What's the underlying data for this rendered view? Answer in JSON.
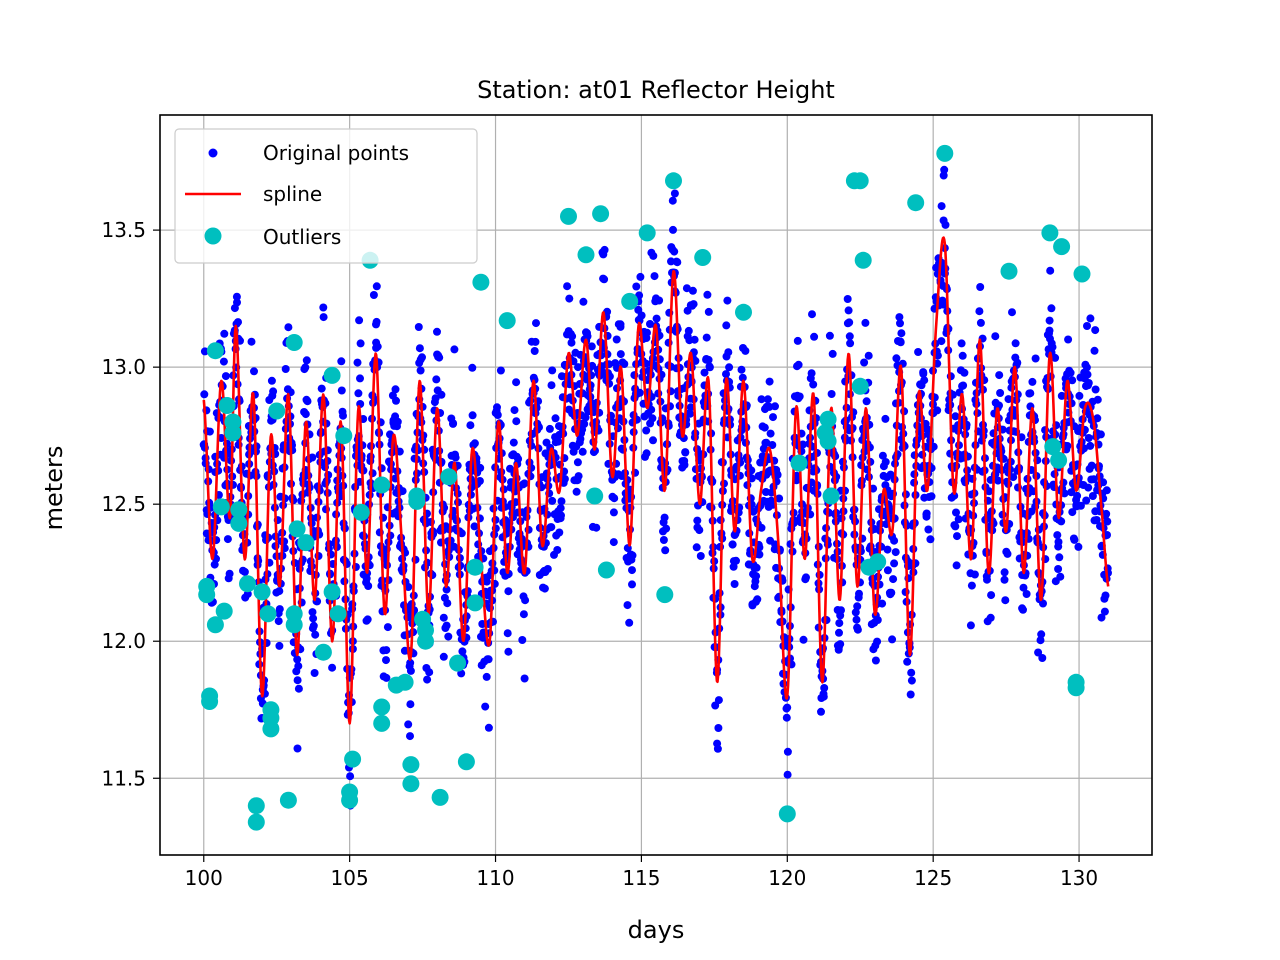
{
  "chart_data": {
    "type": "scatter",
    "title": "Station: at01 Reflector Height",
    "xlabel": "days",
    "ylabel": "meters",
    "xlim": [
      98.5,
      132.5
    ],
    "ylim": [
      11.22,
      13.92
    ],
    "xticks": [
      100,
      105,
      110,
      115,
      120,
      125,
      130
    ],
    "yticks": [
      11.5,
      12.0,
      12.5,
      13.0,
      13.5
    ],
    "xtick_labels": [
      "100",
      "105",
      "110",
      "115",
      "120",
      "125",
      "130"
    ],
    "ytick_labels": [
      "11.5",
      "12.0",
      "12.5",
      "13.0",
      "13.5"
    ],
    "grid": true,
    "legend_position": "upper left",
    "series": [
      {
        "name": "Original points",
        "style": "dots",
        "color": "#0000ff",
        "description": "dense daily oscillating measurements between ~11.4 and ~13.7 m from day 100 to 131"
      },
      {
        "name": "spline",
        "style": "line",
        "color": "#ff0000"
      },
      {
        "name": "Outliers",
        "style": "markers",
        "color": "#00bfbf"
      }
    ],
    "spline": {
      "x": [
        100.0,
        100.3,
        100.6,
        100.9,
        101.1,
        101.4,
        101.7,
        102.0,
        102.3,
        102.6,
        102.9,
        103.2,
        103.5,
        103.8,
        104.1,
        104.4,
        104.7,
        105.0,
        105.3,
        105.6,
        105.9,
        106.2,
        106.5,
        106.8,
        107.1,
        107.4,
        107.7,
        108.0,
        108.3,
        108.6,
        108.9,
        109.2,
        109.5,
        109.8,
        110.1,
        110.4,
        110.7,
        111.0,
        111.3,
        111.6,
        111.9,
        112.2,
        112.5,
        112.8,
        113.1,
        113.4,
        113.7,
        114.0,
        114.3,
        114.6,
        114.9,
        115.2,
        115.5,
        115.8,
        116.1,
        116.4,
        116.7,
        117.0,
        117.3,
        117.6,
        117.9,
        118.2,
        118.5,
        118.8,
        119.1,
        119.4,
        119.7,
        120.0,
        120.3,
        120.6,
        120.9,
        121.2,
        121.5,
        121.8,
        122.1,
        122.4,
        122.7,
        123.0,
        123.3,
        123.6,
        123.9,
        124.2,
        124.5,
        124.8,
        125.1,
        125.4,
        125.7,
        126.0,
        126.3,
        126.6,
        126.9,
        127.2,
        127.5,
        127.8,
        128.1,
        128.4,
        128.7,
        129.0,
        129.3,
        129.6,
        129.9,
        130.2,
        130.5,
        130.8,
        131.0
      ],
      "y": [
        12.88,
        12.3,
        12.95,
        12.45,
        13.15,
        12.3,
        12.9,
        11.8,
        12.75,
        12.2,
        12.9,
        11.95,
        12.8,
        12.15,
        12.9,
        12.0,
        12.8,
        11.7,
        12.85,
        12.25,
        13.05,
        12.1,
        12.75,
        12.35,
        11.95,
        12.95,
        12.1,
        12.85,
        12.2,
        12.65,
        12.0,
        12.7,
        12.3,
        12.0,
        12.8,
        12.25,
        12.65,
        12.25,
        12.95,
        12.35,
        12.7,
        12.55,
        13.05,
        12.75,
        13.1,
        12.7,
        13.2,
        12.6,
        13.0,
        12.35,
        13.15,
        12.85,
        13.15,
        12.55,
        13.35,
        12.75,
        13.05,
        12.5,
        12.95,
        11.85,
        12.95,
        12.4,
        12.95,
        12.3,
        12.55,
        12.7,
        12.35,
        11.8,
        12.85,
        12.3,
        12.9,
        11.85,
        12.85,
        12.15,
        13.05,
        12.2,
        12.85,
        12.1,
        12.55,
        12.4,
        13.0,
        11.95,
        12.9,
        12.55,
        13.15,
        13.45,
        12.55,
        12.9,
        12.3,
        13.1,
        12.25,
        12.85,
        12.4,
        13.0,
        12.25,
        12.85,
        12.15,
        13.05,
        12.45,
        12.95,
        12.55,
        12.85,
        12.8,
        12.45,
        12.2
      ]
    },
    "outliers": [
      {
        "x": 100.1,
        "y": 12.2
      },
      {
        "x": 100.1,
        "y": 12.17
      },
      {
        "x": 100.2,
        "y": 11.8
      },
      {
        "x": 100.2,
        "y": 11.78
      },
      {
        "x": 100.4,
        "y": 12.06
      },
      {
        "x": 100.4,
        "y": 13.06
      },
      {
        "x": 100.6,
        "y": 12.49
      },
      {
        "x": 100.7,
        "y": 12.11
      },
      {
        "x": 100.8,
        "y": 12.86
      },
      {
        "x": 101.0,
        "y": 12.8
      },
      {
        "x": 101.0,
        "y": 12.76
      },
      {
        "x": 101.2,
        "y": 12.48
      },
      {
        "x": 101.2,
        "y": 12.43
      },
      {
        "x": 101.5,
        "y": 12.21
      },
      {
        "x": 101.8,
        "y": 11.4
      },
      {
        "x": 101.8,
        "y": 11.34
      },
      {
        "x": 102.0,
        "y": 12.18
      },
      {
        "x": 102.2,
        "y": 12.1
      },
      {
        "x": 102.3,
        "y": 11.75
      },
      {
        "x": 102.3,
        "y": 11.72
      },
      {
        "x": 102.3,
        "y": 11.68
      },
      {
        "x": 102.5,
        "y": 12.84
      },
      {
        "x": 102.9,
        "y": 11.42
      },
      {
        "x": 103.1,
        "y": 12.1
      },
      {
        "x": 103.1,
        "y": 12.06
      },
      {
        "x": 103.1,
        "y": 13.09
      },
      {
        "x": 103.2,
        "y": 12.41
      },
      {
        "x": 103.5,
        "y": 12.36
      },
      {
        "x": 104.1,
        "y": 11.96
      },
      {
        "x": 104.4,
        "y": 12.18
      },
      {
        "x": 104.4,
        "y": 12.97
      },
      {
        "x": 104.6,
        "y": 12.1
      },
      {
        "x": 104.8,
        "y": 12.75
      },
      {
        "x": 105.0,
        "y": 11.45
      },
      {
        "x": 105.0,
        "y": 11.42
      },
      {
        "x": 105.1,
        "y": 11.57
      },
      {
        "x": 105.4,
        "y": 12.47
      },
      {
        "x": 105.7,
        "y": 13.39
      },
      {
        "x": 106.1,
        "y": 11.76
      },
      {
        "x": 106.1,
        "y": 11.7
      },
      {
        "x": 106.1,
        "y": 12.57
      },
      {
        "x": 106.6,
        "y": 11.84
      },
      {
        "x": 106.9,
        "y": 11.85
      },
      {
        "x": 107.1,
        "y": 11.55
      },
      {
        "x": 107.1,
        "y": 11.48
      },
      {
        "x": 107.3,
        "y": 12.53
      },
      {
        "x": 107.3,
        "y": 12.51
      },
      {
        "x": 107.5,
        "y": 12.08
      },
      {
        "x": 107.6,
        "y": 12.04
      },
      {
        "x": 107.6,
        "y": 12.0
      },
      {
        "x": 108.1,
        "y": 11.43
      },
      {
        "x": 108.4,
        "y": 12.6
      },
      {
        "x": 108.7,
        "y": 11.92
      },
      {
        "x": 109.0,
        "y": 11.56
      },
      {
        "x": 109.3,
        "y": 12.27
      },
      {
        "x": 109.3,
        "y": 12.14
      },
      {
        "x": 109.5,
        "y": 13.31
      },
      {
        "x": 110.4,
        "y": 13.17
      },
      {
        "x": 112.5,
        "y": 13.55
      },
      {
        "x": 113.1,
        "y": 13.41
      },
      {
        "x": 113.4,
        "y": 12.53
      },
      {
        "x": 113.6,
        "y": 13.56
      },
      {
        "x": 113.8,
        "y": 12.26
      },
      {
        "x": 114.6,
        "y": 13.24
      },
      {
        "x": 115.2,
        "y": 13.49
      },
      {
        "x": 115.8,
        "y": 12.17
      },
      {
        "x": 116.1,
        "y": 13.68
      },
      {
        "x": 117.1,
        "y": 13.4
      },
      {
        "x": 118.5,
        "y": 13.2
      },
      {
        "x": 120.0,
        "y": 11.37
      },
      {
        "x": 120.4,
        "y": 12.65
      },
      {
        "x": 121.3,
        "y": 12.76
      },
      {
        "x": 121.4,
        "y": 12.81
      },
      {
        "x": 121.4,
        "y": 12.73
      },
      {
        "x": 121.5,
        "y": 12.53
      },
      {
        "x": 122.3,
        "y": 13.68
      },
      {
        "x": 122.5,
        "y": 13.68
      },
      {
        "x": 122.5,
        "y": 12.93
      },
      {
        "x": 122.6,
        "y": 13.39
      },
      {
        "x": 122.8,
        "y": 12.27
      },
      {
        "x": 123.1,
        "y": 12.29
      },
      {
        "x": 124.4,
        "y": 13.6
      },
      {
        "x": 125.4,
        "y": 13.78
      },
      {
        "x": 127.6,
        "y": 13.35
      },
      {
        "x": 129.0,
        "y": 13.49
      },
      {
        "x": 129.1,
        "y": 12.71
      },
      {
        "x": 129.3,
        "y": 12.66
      },
      {
        "x": 129.4,
        "y": 13.44
      },
      {
        "x": 129.9,
        "y": 11.85
      },
      {
        "x": 129.9,
        "y": 11.83
      },
      {
        "x": 130.1,
        "y": 13.34
      }
    ]
  }
}
